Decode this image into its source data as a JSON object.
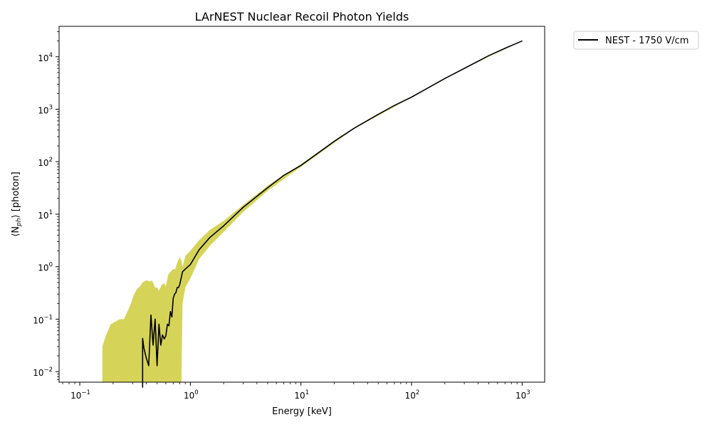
{
  "chart_data": {
    "type": "line",
    "title": "LArNEST Nuclear Recoil Photon Yields",
    "xlabel": "Energy [keV]",
    "ylabel": "⟨N",
    "ylabel_sub": "ph",
    "ylabel_suffix": "⟩ [photon]",
    "xscale": "log",
    "yscale": "log",
    "xlim": [
      0.065,
      1600
    ],
    "ylim": [
      0.0063,
      38000
    ],
    "grid": false,
    "legend_position": "upper right, outside plot",
    "x_ticks": [
      {
        "base": "10",
        "exp": "−1",
        "value": 0.1
      },
      {
        "base": "10",
        "exp": "0",
        "value": 1
      },
      {
        "base": "10",
        "exp": "1",
        "value": 10
      },
      {
        "base": "10",
        "exp": "2",
        "value": 100
      },
      {
        "base": "10",
        "exp": "3",
        "value": 1000
      }
    ],
    "y_ticks": [
      {
        "base": "10",
        "exp": "−2",
        "value": 0.01
      },
      {
        "base": "10",
        "exp": "−1",
        "value": 0.1
      },
      {
        "base": "10",
        "exp": "0",
        "value": 1
      },
      {
        "base": "10",
        "exp": "1",
        "value": 10
      },
      {
        "base": "10",
        "exp": "2",
        "value": 100
      },
      {
        "base": "10",
        "exp": "3",
        "value": 1000
      },
      {
        "base": "10",
        "exp": "4",
        "value": 10000
      }
    ],
    "series": [
      {
        "name": "NEST - 1750 V/cm",
        "color": "#000000",
        "x": [
          0.37,
          0.37,
          0.38,
          0.4,
          0.42,
          0.44,
          0.46,
          0.48,
          0.5,
          0.52,
          0.54,
          0.56,
          0.58,
          0.6,
          0.62,
          0.64,
          0.66,
          0.68,
          0.7,
          0.72,
          0.74,
          0.76,
          0.78,
          0.8,
          0.85,
          0.9,
          1.0,
          1.2,
          1.5,
          2.0,
          3.0,
          5.0,
          7.0,
          10,
          20,
          30,
          50,
          70,
          100,
          200,
          300,
          500,
          700,
          1000
        ],
        "y": [
          0.005,
          0.043,
          0.028,
          0.018,
          0.013,
          0.12,
          0.032,
          0.1,
          0.013,
          0.08,
          0.032,
          0.05,
          0.042,
          0.048,
          0.08,
          0.075,
          0.14,
          0.11,
          0.25,
          0.3,
          0.32,
          0.4,
          0.4,
          0.45,
          0.8,
          0.9,
          1.1,
          2.1,
          3.6,
          6.0,
          13.5,
          32,
          55,
          85,
          245,
          430,
          800,
          1180,
          1700,
          3850,
          6000,
          10500,
          14500,
          20000
        ]
      }
    ],
    "band": {
      "color": "#d4d24f",
      "x": [
        0.16,
        0.17,
        0.19,
        0.21,
        0.23,
        0.25,
        0.27,
        0.29,
        0.31,
        0.33,
        0.35,
        0.37,
        0.4,
        0.43,
        0.45,
        0.48,
        0.5,
        0.52,
        0.55,
        0.58,
        0.6,
        0.63,
        0.66,
        0.7,
        0.73,
        0.76,
        0.8,
        0.83,
        0.85,
        0.9,
        1.0,
        1.2,
        1.5,
        2.0,
        3.0,
        5.0,
        10,
        30,
        100,
        300,
        1000
      ],
      "upper": [
        0.03,
        0.045,
        0.08,
        0.09,
        0.1,
        0.1,
        0.14,
        0.2,
        0.3,
        0.38,
        0.42,
        0.5,
        0.55,
        0.52,
        0.55,
        0.4,
        0.4,
        0.35,
        0.45,
        0.48,
        0.42,
        0.7,
        0.8,
        0.9,
        0.9,
        1.2,
        1.5,
        1.3,
        1.0,
        1.6,
        2.0,
        3.2,
        5.0,
        7.5,
        15,
        35,
        90,
        440,
        1720,
        6050,
        20100
      ],
      "lower": [
        0.0063,
        0.0063,
        0.0063,
        0.0063,
        0.0063,
        0.0063,
        0.0063,
        0.0063,
        0.0063,
        0.0063,
        0.0063,
        0.0063,
        0.0063,
        0.0063,
        0.0063,
        0.0063,
        0.0063,
        0.0063,
        0.0063,
        0.0063,
        0.0063,
        0.0063,
        0.0063,
        0.0063,
        0.0063,
        0.0063,
        0.0063,
        0.0063,
        0.2,
        0.4,
        0.6,
        1.4,
        2.5,
        4.6,
        11,
        28,
        80,
        420,
        1680,
        5950,
        19900
      ]
    }
  }
}
